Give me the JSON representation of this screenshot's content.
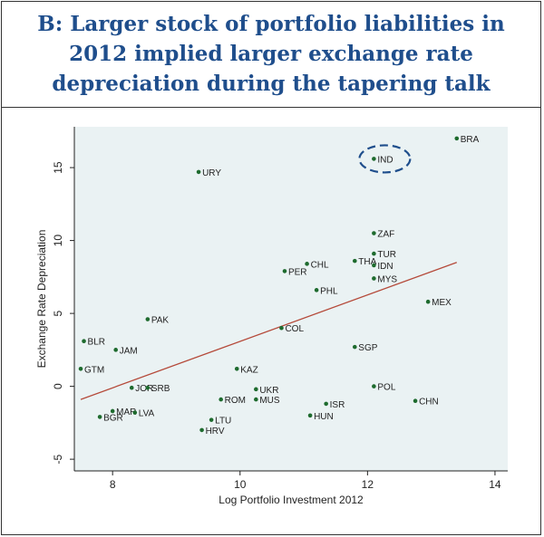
{
  "header": {
    "title": "B: Larger stock of portfolio liabilities in 2012 implied larger exchange rate depreciation during the tapering talk"
  },
  "colors": {
    "title": "#1f4e8c",
    "plot_bg": "#eaf2f3",
    "point": "#1e6b2e",
    "fit_line": "#b54a3a",
    "highlight": "#1f4e8c"
  },
  "chart_data": {
    "type": "scatter",
    "title": "B: Larger stock of portfolio liabilities in 2012 implied larger exchange rate depreciation during the tapering talk",
    "xlabel": "Log Portfolio Investment 2012",
    "ylabel": "Exchange Rate Depreciation",
    "xlim": [
      7.4,
      14.2
    ],
    "ylim": [
      -5.8,
      17.8
    ],
    "xticks": [
      8,
      10,
      12,
      14
    ],
    "yticks": [
      -5,
      0,
      5,
      10,
      15
    ],
    "grid": false,
    "highlighted": "IND",
    "fit_line": {
      "x": [
        7.5,
        13.4
      ],
      "y": [
        -0.9,
        8.5
      ]
    },
    "points": [
      {
        "label": "BRA",
        "x": 13.4,
        "y": 17.0
      },
      {
        "label": "IND",
        "x": 12.1,
        "y": 15.6
      },
      {
        "label": "URY",
        "x": 9.35,
        "y": 14.7
      },
      {
        "label": "ZAF",
        "x": 12.1,
        "y": 10.5
      },
      {
        "label": "TUR",
        "x": 12.1,
        "y": 9.1
      },
      {
        "label": "THA",
        "x": 11.8,
        "y": 8.6
      },
      {
        "label": "IDN",
        "x": 12.1,
        "y": 8.3
      },
      {
        "label": "CHL",
        "x": 11.05,
        "y": 8.4
      },
      {
        "label": "PER",
        "x": 10.7,
        "y": 7.9
      },
      {
        "label": "MYS",
        "x": 12.1,
        "y": 7.4
      },
      {
        "label": "PHL",
        "x": 11.2,
        "y": 6.6
      },
      {
        "label": "MEX",
        "x": 12.95,
        "y": 5.8
      },
      {
        "label": "PAK",
        "x": 8.55,
        "y": 4.6
      },
      {
        "label": "COL",
        "x": 10.65,
        "y": 4.0
      },
      {
        "label": "BLR",
        "x": 7.55,
        "y": 3.1
      },
      {
        "label": "JAM",
        "x": 8.05,
        "y": 2.5
      },
      {
        "label": "SGP",
        "x": 11.8,
        "y": 2.7
      },
      {
        "label": "GTM",
        "x": 7.5,
        "y": 1.2
      },
      {
        "label": "KAZ",
        "x": 9.95,
        "y": 1.2
      },
      {
        "label": "JOR",
        "x": 8.3,
        "y": -0.1
      },
      {
        "label": "SRB",
        "x": 8.55,
        "y": -0.1
      },
      {
        "label": "POL",
        "x": 12.1,
        "y": 0.0
      },
      {
        "label": "UKR",
        "x": 10.25,
        "y": -0.2
      },
      {
        "label": "ROM",
        "x": 9.7,
        "y": -0.9
      },
      {
        "label": "MUS",
        "x": 10.25,
        "y": -0.9
      },
      {
        "label": "ISR",
        "x": 11.35,
        "y": -1.2
      },
      {
        "label": "CHN",
        "x": 12.75,
        "y": -1.0
      },
      {
        "label": "MAR",
        "x": 8.0,
        "y": -1.7
      },
      {
        "label": "LVA",
        "x": 8.35,
        "y": -1.8
      },
      {
        "label": "BGR",
        "x": 7.8,
        "y": -2.1
      },
      {
        "label": "HUN",
        "x": 11.1,
        "y": -2.0
      },
      {
        "label": "LTU",
        "x": 9.55,
        "y": -2.3
      },
      {
        "label": "HRV",
        "x": 9.4,
        "y": -3.0
      }
    ]
  }
}
